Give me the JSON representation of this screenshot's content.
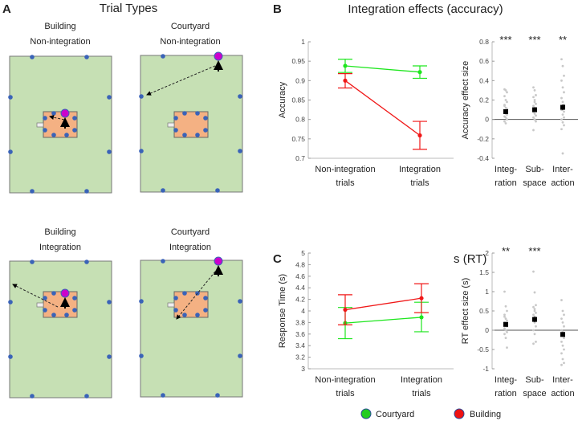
{
  "panel_a": {
    "letter": "A",
    "title": "Trial Types",
    "maps": [
      {
        "line1": "Building",
        "line2": "Non-integration"
      },
      {
        "line1": "Courtyard",
        "line2": "Non-integration"
      },
      {
        "line1": "Building",
        "line2": "Integration"
      },
      {
        "line1": "Courtyard",
        "line2": "Integration"
      }
    ]
  },
  "panel_b": {
    "letter": "B",
    "title": "Integration effects (accuracy)"
  },
  "panel_c": {
    "letter": "C",
    "title": "Integration effects (RT)"
  },
  "legend": [
    {
      "label": "Courtyard",
      "color": "#22cc22"
    },
    {
      "label": "Building",
      "color": "#ee1111"
    }
  ],
  "colors": {
    "courtyard": "#1ee61e",
    "building": "#f01818",
    "grass": "#c6e0b4",
    "building_fill": "#f4b183",
    "marker": "#3a63b8",
    "target": "#cc00cc"
  },
  "chart_data": [
    {
      "type": "line",
      "id": "acc",
      "ylabel": "Accuracy",
      "categories": [
        "Non-integration|trials",
        "Integration|trials"
      ],
      "ylim": [
        0.7,
        1
      ],
      "yticks": [
        0.7,
        0.75,
        0.8,
        0.85,
        0.9,
        0.95,
        1
      ],
      "series": [
        {
          "name": "Courtyard",
          "values": [
            0.938,
            0.922
          ],
          "lo": [
            0.921,
            0.906
          ],
          "hi": [
            0.955,
            0.938
          ]
        },
        {
          "name": "Building",
          "values": [
            0.9,
            0.759
          ],
          "lo": [
            0.881,
            0.723
          ],
          "hi": [
            0.918,
            0.795
          ]
        }
      ]
    },
    {
      "type": "scatter",
      "id": "acceff",
      "ylabel": "Accuracy effect size",
      "categories": [
        "Integ-|ration",
        "Sub-|space",
        "Inter-|action"
      ],
      "ylim": [
        -0.4,
        0.8
      ],
      "yticks": [
        -0.4,
        -0.2,
        0,
        0.2,
        0.4,
        0.6,
        0.8
      ],
      "significance": [
        "***",
        "***",
        "**"
      ],
      "means": [
        0.08,
        0.1,
        0.125
      ],
      "sem": [
        0.02,
        0.02,
        0.03
      ],
      "points": [
        [
          0.31,
          0.3,
          0.28,
          0.24,
          0.2,
          0.18,
          0.15,
          0.12,
          0.1,
          0.08,
          0.06,
          0.05,
          0.03,
          0.02,
          0,
          -0.02,
          -0.04,
          0.11,
          0.14
        ],
        [
          0.33,
          0.3,
          0.25,
          0.23,
          0.2,
          0.16,
          0.14,
          0.12,
          0.1,
          0.08,
          0.06,
          0.04,
          0.02,
          0,
          -0.02,
          -0.11,
          0.18,
          0.09
        ],
        [
          0.62,
          0.55,
          0.45,
          0.4,
          0.33,
          0.28,
          0.22,
          0.18,
          0.15,
          0.1,
          0.05,
          0.02,
          0,
          -0.03,
          -0.06,
          -0.1,
          -0.35,
          0.08
        ]
      ]
    },
    {
      "type": "line",
      "id": "rt",
      "ylabel": "Response Time (s)",
      "categories": [
        "Non-integration|trials",
        "Integration|trials"
      ],
      "ylim": [
        3,
        5
      ],
      "yticks": [
        3,
        3.2,
        3.4,
        3.6,
        3.8,
        4,
        4.2,
        4.4,
        4.6,
        4.8,
        5
      ],
      "series": [
        {
          "name": "Courtyard",
          "values": [
            3.79,
            3.89
          ],
          "lo": [
            3.52,
            3.64
          ],
          "hi": [
            4.06,
            4.15
          ]
        },
        {
          "name": "Building",
          "values": [
            4.02,
            4.22
          ],
          "lo": [
            3.76,
            3.97
          ],
          "hi": [
            4.28,
            4.47
          ]
        }
      ]
    },
    {
      "type": "scatter",
      "id": "rteff",
      "ylabel": "RT effect size (s)",
      "categories": [
        "Integ-|ration",
        "Sub-|space",
        "Inter-|action"
      ],
      "ylim": [
        -1,
        2
      ],
      "yticks": [
        -1,
        -0.5,
        0,
        0.5,
        1,
        1.5,
        2
      ],
      "significance": [
        "**",
        "***",
        ""
      ],
      "means": [
        0.15,
        0.28,
        -0.11
      ],
      "sem": [
        0.06,
        0.07,
        0.06
      ],
      "points": [
        [
          1.0,
          0.62,
          0.5,
          0.4,
          0.3,
          0.25,
          0.2,
          0.15,
          0.1,
          0.05,
          0,
          -0.05,
          -0.1,
          -0.2,
          -0.45,
          0.35
        ],
        [
          1.52,
          0.98,
          0.65,
          0.6,
          0.5,
          0.45,
          0.4,
          0.35,
          0.3,
          0.25,
          0.2,
          0.1,
          0,
          -0.1,
          -0.3,
          -0.35,
          0.55
        ],
        [
          0.78,
          0.5,
          0.4,
          0.3,
          0.2,
          0.1,
          0,
          -0.1,
          -0.2,
          -0.3,
          -0.4,
          -0.5,
          -0.6,
          -0.75,
          -0.85,
          -0.9,
          -0.05
        ]
      ]
    }
  ]
}
